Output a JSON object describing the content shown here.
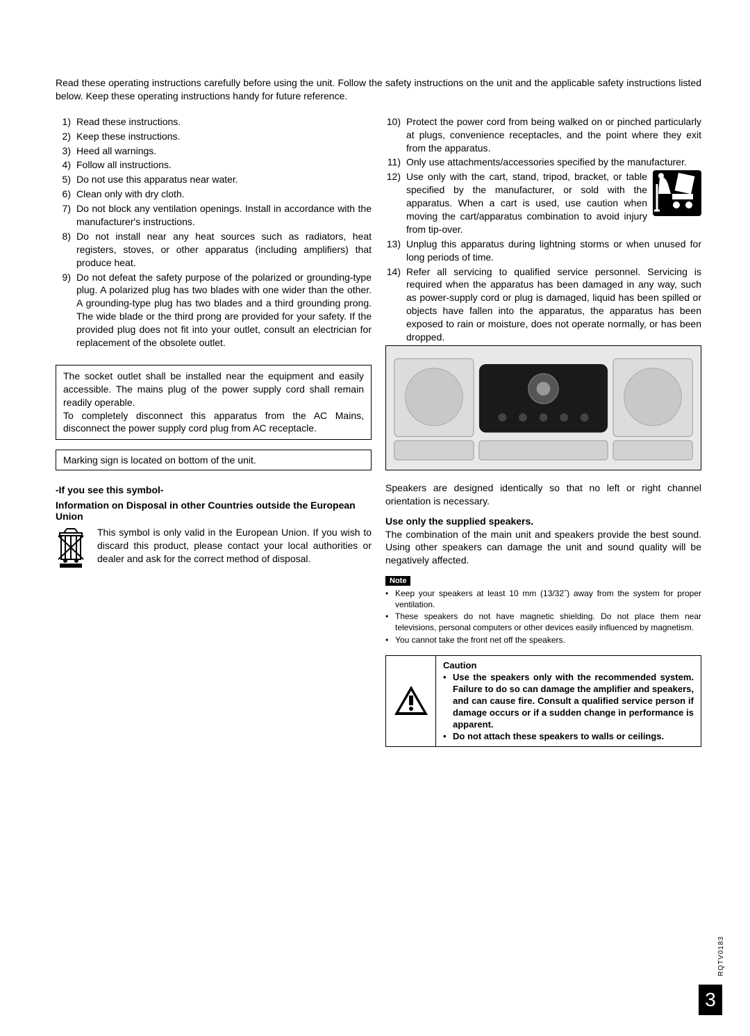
{
  "intro": "Read these operating instructions carefully before using the unit. Follow the safety instructions on the unit and the applicable safety instructions listed below. Keep these operating instructions handy for future reference.",
  "left_instructions": [
    {
      "n": "1)",
      "t": "Read these instructions."
    },
    {
      "n": "2)",
      "t": "Keep these instructions."
    },
    {
      "n": "3)",
      "t": "Heed all warnings."
    },
    {
      "n": "4)",
      "t": "Follow all instructions."
    },
    {
      "n": "5)",
      "t": "Do not use this apparatus near water."
    },
    {
      "n": "6)",
      "t": "Clean only with dry cloth."
    },
    {
      "n": "7)",
      "t": "Do not block any ventilation openings. Install in accordance with the manufacturer's instructions."
    },
    {
      "n": "8)",
      "t": "Do not install near any heat sources such as radiators, heat registers, stoves, or other apparatus (including amplifiers) that produce heat."
    },
    {
      "n": "9)",
      "t": "Do not defeat the safety purpose of the polarized or grounding-type plug. A polarized plug has two blades with one wider than the other. A grounding-type plug has two blades and a third grounding prong. The wide blade or the third prong are provided for your safety. If the provided plug does not fit into your outlet, consult an electrician for replacement of the obsolete outlet."
    }
  ],
  "right_instructions": [
    {
      "n": "10)",
      "t": "Protect the power cord from being walked on or pinched particularly at plugs, convenience receptacles, and the point where they exit from the apparatus."
    },
    {
      "n": "11)",
      "t": "Only use attachments/accessories specified by the manufacturer."
    },
    {
      "n": "12)",
      "t": "Use only with the cart, stand, tripod, bracket, or table specified by the manufacturer, or sold with the apparatus. When a cart is used, use caution when moving the cart/apparatus combination to avoid injury from tip-over.",
      "has_icon": true
    },
    {
      "n": "13)",
      "t": "Unplug this apparatus during lightning storms or when unused for long periods of time."
    },
    {
      "n": "14)",
      "t": "Refer all servicing to qualified service personnel. Servicing is required when the apparatus has been damaged in any way, such as power-supply cord or plug is damaged, liquid has been spilled or objects have fallen into the apparatus, the apparatus has been exposed to rain or moisture, does not operate normally, or has been dropped."
    }
  ],
  "socket_box": "The socket outlet shall be installed near the equipment and easily accessible. The mains plug of the power supply cord shall remain readily operable.\nTo completely disconnect this apparatus from the AC Mains, disconnect the power supply cord plug from AC receptacle.",
  "marking_box": "Marking sign is located on bottom of the unit.",
  "symbol_heading": "-If you see this symbol-",
  "disposal_heading": "Information on Disposal in other Countries outside the European Union",
  "disposal_text": "This symbol is only valid in the European Union. If you wish to discard this product, please contact your local authorities or dealer and ask for the correct method of disposal.",
  "speakers_para": "Speakers are designed identically so that no left or right channel orientation is necessary.",
  "use_speakers_heading": "Use only the supplied speakers.",
  "use_speakers_text": "The combination of the main unit and speakers provide the best sound. Using other speakers can damage the unit and sound quality will be negatively affected.",
  "note_label": "Note",
  "note_items": [
    "Keep your speakers at least 10 mm (13/32˝) away from the system for proper ventilation.",
    "These speakers do not have magnetic shielding. Do not place them near televisions, personal computers or other devices easily influenced by magnetism.",
    "You cannot take the front net off the speakers."
  ],
  "caution_heading": "Caution",
  "caution_items": [
    "Use the speakers only with the recommended system. Failure to do so can damage the amplifier and speakers, and can cause fire. Consult a qualified service person if damage occurs or if a sudden change in performance is apparent.",
    "Do not attach these speakers to walls or ceilings."
  ],
  "doc_code": "RQTV0183",
  "page_number": "3",
  "colors": {
    "text": "#000000",
    "bg": "#ffffff",
    "note_tag_bg": "#000000",
    "note_tag_text": "#ffffff",
    "border": "#000000",
    "image_bg": "#f0f0f0"
  }
}
